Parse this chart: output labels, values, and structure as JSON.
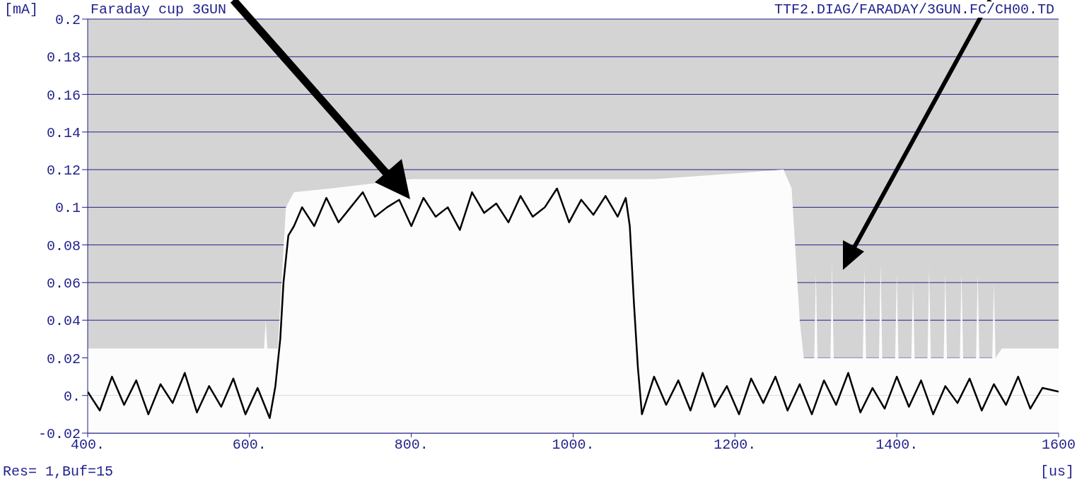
{
  "chart_data": {
    "type": "area",
    "title": "Faraday cup 3GUN",
    "subtitle": "TTF2.DIAG/FARADAY/3GUN.FC/CH00.TD",
    "ylabel": "[mA]",
    "xlabel": "[us]",
    "annotations": [
      "Res= 1,Buf=15"
    ],
    "xlim": [
      400,
      1600
    ],
    "xticks": [
      {
        "value": 400,
        "label": "400."
      },
      {
        "value": 600,
        "label": "600."
      },
      {
        "value": 800,
        "label": "800."
      },
      {
        "value": 1000,
        "label": "1000."
      },
      {
        "value": 1200,
        "label": "1200."
      },
      {
        "value": 1400,
        "label": "1400."
      },
      1600
    ],
    "ylim": [
      -0.02,
      0.2
    ],
    "yticks": [
      -0.02,
      {
        "value": 0,
        "label": "0."
      },
      0.02,
      0.04,
      0.06,
      0.08,
      0.1,
      0.12,
      0.14,
      0.16,
      0.18,
      0.2
    ],
    "grid": "y",
    "legend": false,
    "bands": [
      {
        "axis": "y",
        "from": -0.02,
        "to": 0,
        "color": "#fcfcfc"
      }
    ],
    "series": [
      {
        "color": "#fcfcfc",
        "x": [
          400,
          618,
          620,
          622,
          624,
          635,
          645,
          655,
          700,
          800,
          900,
          1000,
          1100,
          1200,
          1260,
          1270,
          1280,
          1285,
          1298,
          1300,
          1302,
          1318,
          1320,
          1322,
          1358,
          1360,
          1362,
          1378,
          1380,
          1382,
          1398,
          1400,
          1402,
          1418,
          1420,
          1422,
          1438,
          1440,
          1442,
          1458,
          1460,
          1462,
          1478,
          1480,
          1482,
          1498,
          1500,
          1502,
          1518,
          1520,
          1522,
          1530,
          1600
        ],
        "values": [
          0.025,
          0.025,
          0.04,
          0.025,
          0.025,
          0.025,
          0.1,
          0.108,
          0.11,
          0.115,
          0.115,
          0.115,
          0.115,
          0.118,
          0.12,
          0.11,
          0.04,
          0.02,
          0.02,
          0.065,
          0.02,
          0.02,
          0.07,
          0.02,
          0.02,
          0.068,
          0.02,
          0.02,
          0.07,
          0.02,
          0.02,
          0.065,
          0.02,
          0.02,
          0.06,
          0.02,
          0.02,
          0.068,
          0.02,
          0.02,
          0.065,
          0.02,
          0.02,
          0.065,
          0.02,
          0.02,
          0.065,
          0.02,
          0.02,
          0.06,
          0.02,
          0.025,
          0.025
        ]
      },
      {
        "type": "line",
        "color": "#000000",
        "x": [
          400,
          415,
          430,
          445,
          460,
          475,
          490,
          505,
          520,
          535,
          550,
          565,
          580,
          595,
          610,
          625,
          632,
          638,
          642,
          648,
          655,
          665,
          680,
          695,
          710,
          725,
          740,
          755,
          770,
          785,
          800,
          815,
          830,
          845,
          860,
          875,
          890,
          905,
          920,
          935,
          950,
          965,
          980,
          995,
          1010,
          1025,
          1040,
          1055,
          1065,
          1070,
          1075,
          1080,
          1085,
          1100,
          1115,
          1130,
          1145,
          1160,
          1175,
          1190,
          1205,
          1220,
          1235,
          1250,
          1265,
          1280,
          1295,
          1310,
          1325,
          1340,
          1355,
          1370,
          1385,
          1400,
          1415,
          1430,
          1445,
          1460,
          1475,
          1490,
          1505,
          1520,
          1535,
          1550,
          1565,
          1580,
          1600
        ],
        "values": [
          0.002,
          -0.008,
          0.01,
          -0.005,
          0.008,
          -0.01,
          0.006,
          -0.004,
          0.012,
          -0.009,
          0.005,
          -0.006,
          0.009,
          -0.01,
          0.004,
          -0.012,
          0.005,
          0.03,
          0.06,
          0.085,
          0.09,
          0.1,
          0.09,
          0.105,
          0.092,
          0.1,
          0.108,
          0.095,
          0.1,
          0.104,
          0.09,
          0.105,
          0.095,
          0.1,
          0.088,
          0.108,
          0.097,
          0.102,
          0.092,
          0.106,
          0.095,
          0.1,
          0.11,
          0.092,
          0.104,
          0.096,
          0.106,
          0.095,
          0.105,
          0.09,
          0.05,
          0.015,
          -0.01,
          0.01,
          -0.005,
          0.008,
          -0.008,
          0.012,
          -0.006,
          0.005,
          -0.01,
          0.009,
          -0.004,
          0.01,
          -0.008,
          0.006,
          -0.01,
          0.008,
          -0.005,
          0.012,
          -0.009,
          0.004,
          -0.007,
          0.01,
          -0.006,
          0.008,
          -0.01,
          0.005,
          -0.004,
          0.009,
          -0.008,
          0.006,
          -0.005,
          0.01,
          -0.007,
          0.004,
          0.002
        ]
      }
    ]
  }
}
